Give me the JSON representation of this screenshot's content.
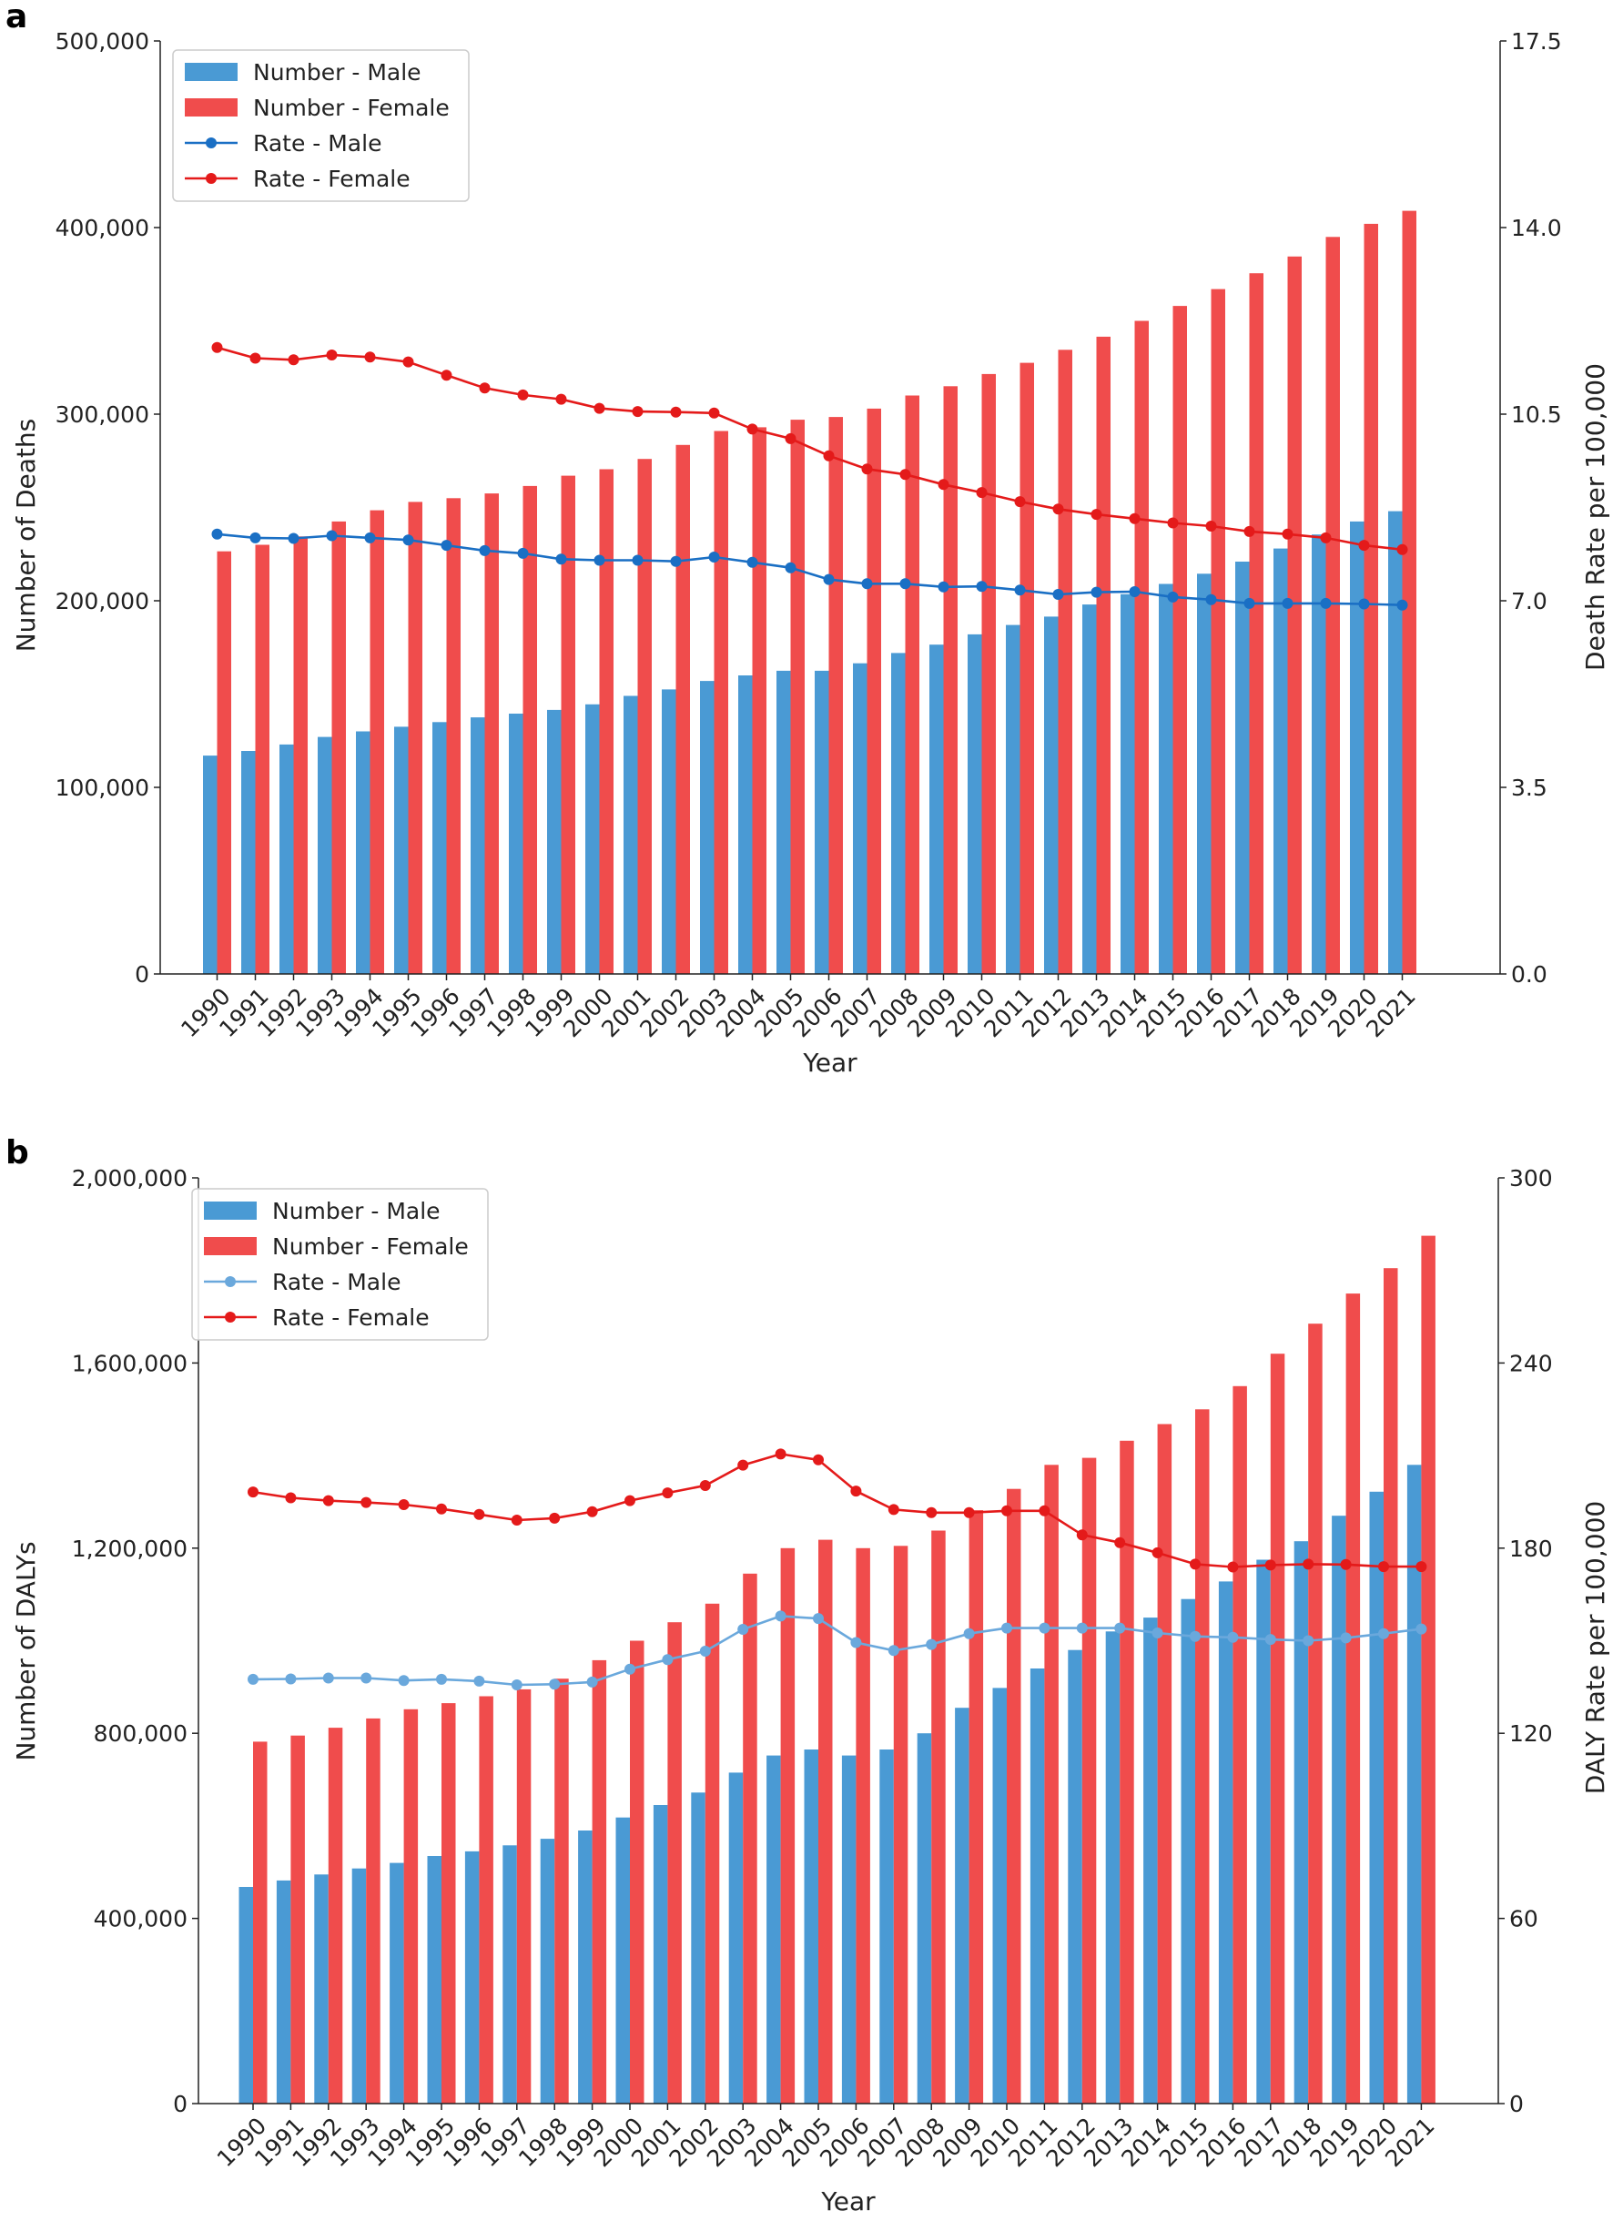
{
  "chart_data": [
    {
      "panel_label": "a",
      "type": "bar+line",
      "title": "",
      "xlabel": "Year",
      "ylabel_left": "Number of Deaths",
      "ylabel_right": "Death Rate per 100,000",
      "categories": [
        "1990",
        "1991",
        "1992",
        "1993",
        "1994",
        "1995",
        "1996",
        "1997",
        "1998",
        "1999",
        "2000",
        "2001",
        "2002",
        "2003",
        "2004",
        "2005",
        "2006",
        "2007",
        "2008",
        "2009",
        "2010",
        "2011",
        "2012",
        "2013",
        "2014",
        "2015",
        "2016",
        "2017",
        "2018",
        "2019",
        "2020",
        "2021"
      ],
      "ylim_left": [
        0,
        500000
      ],
      "yticks_left": [
        0,
        100000,
        200000,
        300000,
        400000,
        500000
      ],
      "ytick_labels_left": [
        "0",
        "100,000",
        "200,000",
        "300,000",
        "400,000",
        "500,000"
      ],
      "ylim_right": [
        0,
        17.5
      ],
      "yticks_right": [
        0,
        3.5,
        7,
        10.5,
        14,
        17.5
      ],
      "ytick_labels_right": [
        "0.0",
        "3.5",
        "7.0",
        "10.5",
        "14.0",
        "17.5"
      ],
      "legend_position": "top-left",
      "bar_series": [
        {
          "name": "Number - Male",
          "color": "#4a9ad4",
          "values": [
            117000,
            119500,
            123000,
            127000,
            130000,
            132500,
            135000,
            137500,
            139500,
            141500,
            144500,
            149000,
            152500,
            157000,
            160000,
            162500,
            162500,
            166500,
            172000,
            176500,
            182000,
            187000,
            191500,
            198000,
            203500,
            209000,
            214500,
            221000,
            228000,
            235500,
            242500,
            248000
          ]
        },
        {
          "name": "Number - Female",
          "color": "#f04c4c",
          "values": [
            226500,
            230000,
            234500,
            242500,
            248500,
            253000,
            255000,
            257500,
            261500,
            267000,
            270500,
            276000,
            283500,
            291000,
            293000,
            297000,
            298500,
            303000,
            310000,
            315000,
            321500,
            327500,
            334500,
            341500,
            350000,
            358000,
            367000,
            375500,
            384500,
            395000,
            402000,
            409000
          ]
        }
      ],
      "line_series": [
        {
          "name": "Rate - Male",
          "color": "#1a6fc4",
          "values": [
            8.25,
            8.18,
            8.17,
            8.22,
            8.18,
            8.14,
            8.04,
            7.94,
            7.89,
            7.78,
            7.76,
            7.76,
            7.74,
            7.82,
            7.72,
            7.62,
            7.4,
            7.32,
            7.32,
            7.26,
            7.27,
            7.2,
            7.12,
            7.16,
            7.17,
            7.07,
            7.02,
            6.95,
            6.95,
            6.95,
            6.94,
            6.92
          ]
        },
        {
          "name": "Rate - Female",
          "color": "#e41a1a",
          "values": [
            11.75,
            11.55,
            11.52,
            11.61,
            11.57,
            11.48,
            11.23,
            10.99,
            10.86,
            10.78,
            10.61,
            10.55,
            10.54,
            10.52,
            10.22,
            10.04,
            9.72,
            9.47,
            9.37,
            9.18,
            9.03,
            8.86,
            8.72,
            8.62,
            8.54,
            8.46,
            8.4,
            8.3,
            8.25,
            8.18,
            8.04,
            7.96
          ]
        }
      ]
    },
    {
      "panel_label": "b",
      "type": "bar+line",
      "title": "",
      "xlabel": "Year",
      "ylabel_left": "Number of DALYs",
      "ylabel_right": "DALY Rate per 100,000",
      "categories": [
        "1990",
        "1991",
        "1992",
        "1993",
        "1994",
        "1995",
        "1996",
        "1997",
        "1998",
        "1999",
        "2000",
        "2001",
        "2002",
        "2003",
        "2004",
        "2005",
        "2006",
        "2007",
        "2008",
        "2009",
        "2010",
        "2011",
        "2012",
        "2013",
        "2014",
        "2015",
        "2016",
        "2017",
        "2018",
        "2019",
        "2020",
        "2021"
      ],
      "ylim_left": [
        0,
        2000000
      ],
      "yticks_left": [
        0,
        400000,
        800000,
        1200000,
        1600000,
        2000000
      ],
      "ytick_labels_left": [
        "0",
        "400,000",
        "800,000",
        "1,200,000",
        "1,600,000",
        "2,000,000"
      ],
      "ylim_right": [
        0,
        300
      ],
      "yticks_right": [
        0,
        60,
        120,
        180,
        240,
        300
      ],
      "ytick_labels_right": [
        "0",
        "60",
        "120",
        "180",
        "240",
        "300"
      ],
      "legend_position": "top-left",
      "bar_series": [
        {
          "name": "Number - Male",
          "color": "#4a9ad4",
          "values": [
            468000,
            482000,
            495000,
            508000,
            520000,
            535000,
            545000,
            558000,
            572000,
            590000,
            618000,
            645000,
            672000,
            715000,
            752000,
            765000,
            752000,
            765000,
            800000,
            855000,
            898000,
            940000,
            980000,
            1020000,
            1050000,
            1090000,
            1128000,
            1175000,
            1215000,
            1270000,
            1322000,
            1380000
          ]
        },
        {
          "name": "Number - Female",
          "color": "#f04c4c",
          "values": [
            782000,
            795000,
            812000,
            832000,
            852000,
            865000,
            880000,
            895000,
            918000,
            958000,
            1000000,
            1040000,
            1080000,
            1145000,
            1200000,
            1218000,
            1200000,
            1205000,
            1238000,
            1282000,
            1328000,
            1380000,
            1395000,
            1432000,
            1468000,
            1500000,
            1550000,
            1620000,
            1685000,
            1750000,
            1805000,
            1875000
          ]
        }
      ],
      "line_series": [
        {
          "name": "Rate - Male",
          "color": "#6aa8dc",
          "values": [
            137.5,
            137.6,
            137.9,
            137.9,
            137.1,
            137.5,
            136.9,
            135.7,
            135.9,
            136.6,
            140.8,
            143.9,
            146.6,
            153.7,
            158.0,
            157.2,
            149.4,
            146.8,
            148.8,
            152.3,
            154.1,
            154.1,
            154.1,
            154.1,
            152.5,
            151.4,
            151.1,
            150.4,
            150.0,
            150.9,
            152.3,
            153.8
          ]
        },
        {
          "name": "Rate - Female",
          "color": "#e41a1a",
          "values": [
            198.2,
            196.3,
            195.4,
            194.8,
            194.1,
            192.7,
            190.9,
            189.1,
            189.7,
            191.8,
            195.4,
            197.9,
            200.3,
            206.9,
            210.5,
            208.6,
            198.5,
            192.5,
            191.5,
            191.5,
            192.1,
            192.1,
            184.3,
            181.8,
            178.5,
            174.8,
            173.9,
            174.5,
            174.8,
            174.7,
            174.0,
            174.0
          ]
        }
      ]
    }
  ]
}
